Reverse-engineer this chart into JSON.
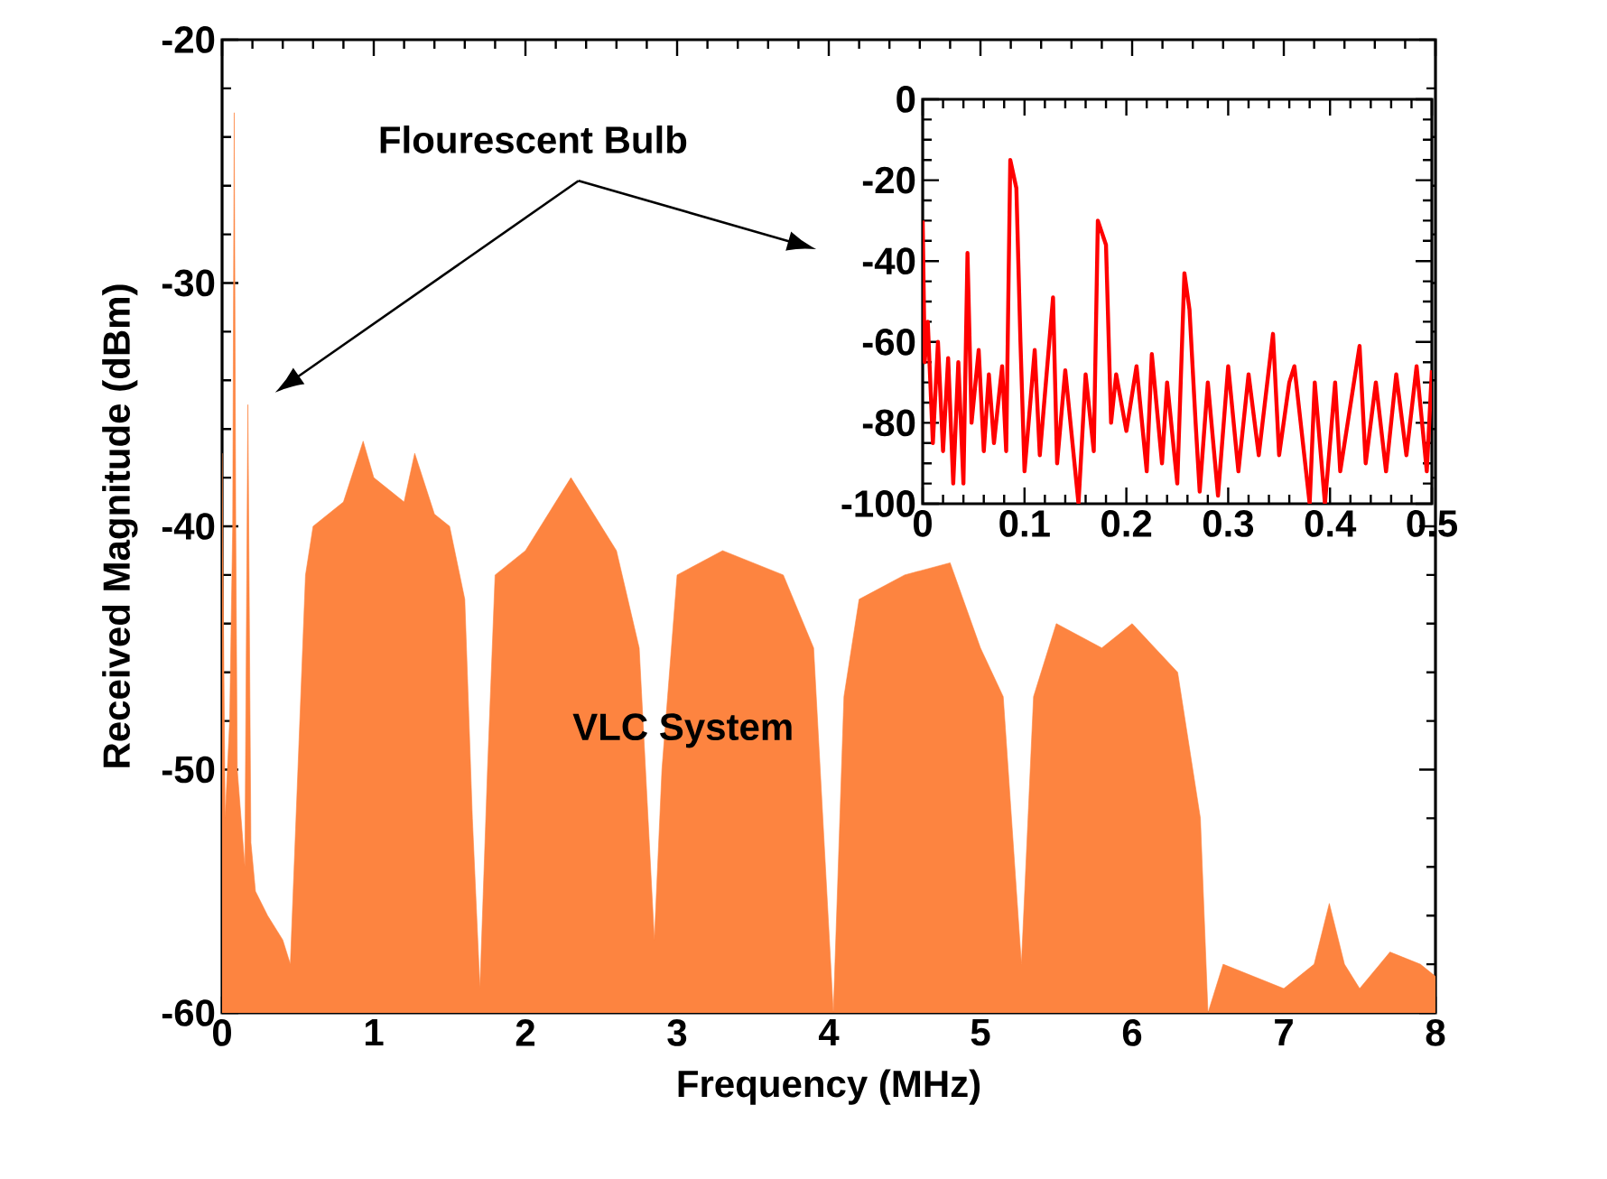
{
  "chart_data": [
    {
      "type": "area",
      "xlabel": "Frequency (MHz)",
      "ylabel": "Received Magnitude (dBm)",
      "xlim": [
        0,
        8
      ],
      "ylim": [
        -60,
        -20
      ],
      "xticks": [
        0,
        1,
        2,
        3,
        4,
        5,
        6,
        7,
        8
      ],
      "yticks": [
        -60,
        -50,
        -40,
        -30,
        -20
      ],
      "annotations": [
        "Flourescent Bulb",
        "VLC System"
      ],
      "series": [
        {
          "color": "#fd8440",
          "x": [
            0,
            0,
            0.02,
            0.05,
            0.07,
            0.08,
            0.09,
            0.1,
            0.15,
            0.17,
            0.19,
            0.22,
            0.3,
            0.4,
            0.45,
            0.5,
            0.55,
            0.6,
            0.8,
            0.93,
            1.0,
            1.1,
            1.2,
            1.27,
            1.4,
            1.5,
            1.6,
            1.65,
            1.7,
            1.75,
            1.8,
            2.0,
            2.3,
            2.6,
            2.75,
            2.85,
            2.9,
            3.0,
            3.3,
            3.7,
            3.9,
            4.03,
            4.1,
            4.2,
            4.5,
            4.8,
            5.0,
            5.15,
            5.27,
            5.35,
            5.5,
            5.8,
            6.0,
            6.3,
            6.45,
            6.5,
            6.6,
            6.8,
            7.0,
            7.2,
            7.3,
            7.4,
            7.5,
            7.7,
            7.9,
            8.0,
            8.0
          ],
          "values": [
            -60,
            -37,
            -52,
            -48,
            -40,
            -23,
            -40,
            -50,
            -54,
            -35,
            -53,
            -55,
            -56,
            -57,
            -58,
            -50,
            -42,
            -40,
            -39,
            -36.5,
            -38,
            -38.5,
            -39,
            -37,
            -39.5,
            -40,
            -43,
            -52,
            -59,
            -50,
            -42,
            -41,
            -38,
            -41,
            -45,
            -57,
            -50,
            -42,
            -41,
            -42,
            -45,
            -60,
            -47,
            -43,
            -42,
            -41.5,
            -45,
            -47,
            -58,
            -47,
            -44,
            -45,
            -44,
            -46,
            -52,
            -60,
            -58,
            -58.5,
            -59,
            -58,
            -55.5,
            -58,
            -59,
            -57.5,
            -58,
            -58.5,
            -60
          ]
        }
      ]
    },
    {
      "type": "line",
      "xlim": [
        0,
        0.5
      ],
      "ylim": [
        -100,
        0
      ],
      "xticks": [
        0,
        0.1,
        0.2,
        0.3,
        0.4,
        0.5
      ],
      "yticks": [
        -100,
        -80,
        -60,
        -40,
        -20,
        0
      ],
      "series": [
        {
          "color": "#ff0000",
          "x": [
            0,
            0.002,
            0.005,
            0.01,
            0.015,
            0.02,
            0.025,
            0.03,
            0.035,
            0.04,
            0.044,
            0.048,
            0.055,
            0.06,
            0.065,
            0.07,
            0.078,
            0.082,
            0.086,
            0.092,
            0.096,
            0.1,
            0.11,
            0.115,
            0.128,
            0.132,
            0.14,
            0.153,
            0.16,
            0.168,
            0.172,
            0.18,
            0.185,
            0.19,
            0.2,
            0.21,
            0.22,
            0.225,
            0.235,
            0.24,
            0.25,
            0.257,
            0.262,
            0.268,
            0.272,
            0.28,
            0.29,
            0.3,
            0.31,
            0.32,
            0.33,
            0.344,
            0.35,
            0.36,
            0.365,
            0.38,
            0.385,
            0.395,
            0.405,
            0.41,
            0.429,
            0.435,
            0.445,
            0.455,
            0.465,
            0.475,
            0.485,
            0.495,
            0.5
          ],
          "values": [
            -30,
            -65,
            -55,
            -85,
            -60,
            -87,
            -64,
            -95,
            -65,
            -95,
            -38,
            -80,
            -62,
            -87,
            -68,
            -85,
            -66,
            -87,
            -15,
            -22,
            -60,
            -92,
            -62,
            -88,
            -49,
            -90,
            -67,
            -100,
            -68,
            -87,
            -30,
            -36,
            -80,
            -68,
            -82,
            -66,
            -92,
            -63,
            -90,
            -70,
            -95,
            -43,
            -52,
            -80,
            -97,
            -70,
            -98,
            -66,
            -92,
            -68,
            -88,
            -58,
            -88,
            -70,
            -66,
            -100,
            -70,
            -100,
            -70,
            -92,
            -61,
            -90,
            -70,
            -92,
            -68,
            -88,
            -66,
            -92,
            -67
          ]
        }
      ]
    }
  ]
}
